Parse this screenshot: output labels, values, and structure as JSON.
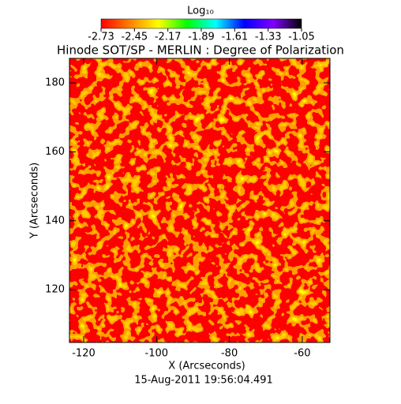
{
  "chart_data": {
    "type": "heatmap",
    "title": "Hinode SOT/SP - MERLIN : Degree of Polarization",
    "colorbar_label": "Log₁₀",
    "colorbar_lim": [
      -2.73,
      -1.05
    ],
    "colorbar_ticks": [
      -2.73,
      -2.45,
      -2.17,
      -1.89,
      -1.61,
      -1.33,
      -1.05
    ],
    "colormap": [
      "#ff0000",
      "#ff8000",
      "#ffff00",
      "#00ff00",
      "#00ffff",
      "#0000ff",
      "#8000ff",
      "#000000"
    ],
    "x_label": "X (Arcseconds)",
    "y_label": "Y (Arcseconds)",
    "xlim": [
      -123.9,
      -52.4
    ],
    "xticks": [
      -120,
      -100,
      -80,
      -60
    ],
    "ylim": [
      104.7,
      187.1
    ],
    "yticks": [
      120,
      140,
      160,
      180
    ],
    "footer": "15-Aug-2011 19:56:04.491"
  }
}
